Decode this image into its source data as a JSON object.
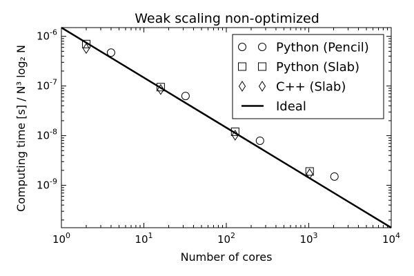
{
  "chart_data": {
    "type": "scatter",
    "title": "Weak scaling non-optimized",
    "xlabel": "Number of cores",
    "ylabel": "Computing time [s] / N³ log₂ N",
    "xscale": "log",
    "yscale": "log",
    "xlim": [
      1,
      10000
    ],
    "ylim": [
      1.4e-10,
      1.5e-06
    ],
    "x_ticks": [
      {
        "value": 1,
        "base": "10",
        "exp": "0"
      },
      {
        "value": 10,
        "base": "10",
        "exp": "1"
      },
      {
        "value": 100,
        "base": "10",
        "exp": "2"
      },
      {
        "value": 1000,
        "base": "10",
        "exp": "3"
      },
      {
        "value": 10000,
        "base": "10",
        "exp": "4"
      }
    ],
    "y_ticks": [
      {
        "value": 1e-09,
        "base": "10",
        "exp": "-9"
      },
      {
        "value": 1e-08,
        "base": "10",
        "exp": "-8"
      },
      {
        "value": 1e-07,
        "base": "10",
        "exp": "-7"
      },
      {
        "value": 1e-06,
        "base": "10",
        "exp": "-6"
      }
    ],
    "grid": false,
    "legend_position": "top-right",
    "series": [
      {
        "name": "Python (Pencil)",
        "marker": "circle",
        "x": [
          4,
          32,
          256,
          2048
        ],
        "y": [
          4.7e-07,
          6.3e-08,
          7.9e-09,
          1.5e-09
        ]
      },
      {
        "name": "Python (Slab)",
        "marker": "square",
        "x": [
          2,
          16,
          128,
          1024
        ],
        "y": [
          7e-07,
          9.5e-08,
          1.2e-08,
          1.9e-09
        ]
      },
      {
        "name": "C++ (Slab)",
        "marker": "diamond",
        "x": [
          2,
          16,
          128,
          1024
        ],
        "y": [
          5.7e-07,
          8.5e-08,
          1.02e-08,
          1.7e-09
        ]
      },
      {
        "name": "Ideal",
        "marker": "line",
        "x": [
          1,
          10000
        ],
        "y": [
          1.5e-06,
          1.4e-10
        ]
      }
    ]
  }
}
